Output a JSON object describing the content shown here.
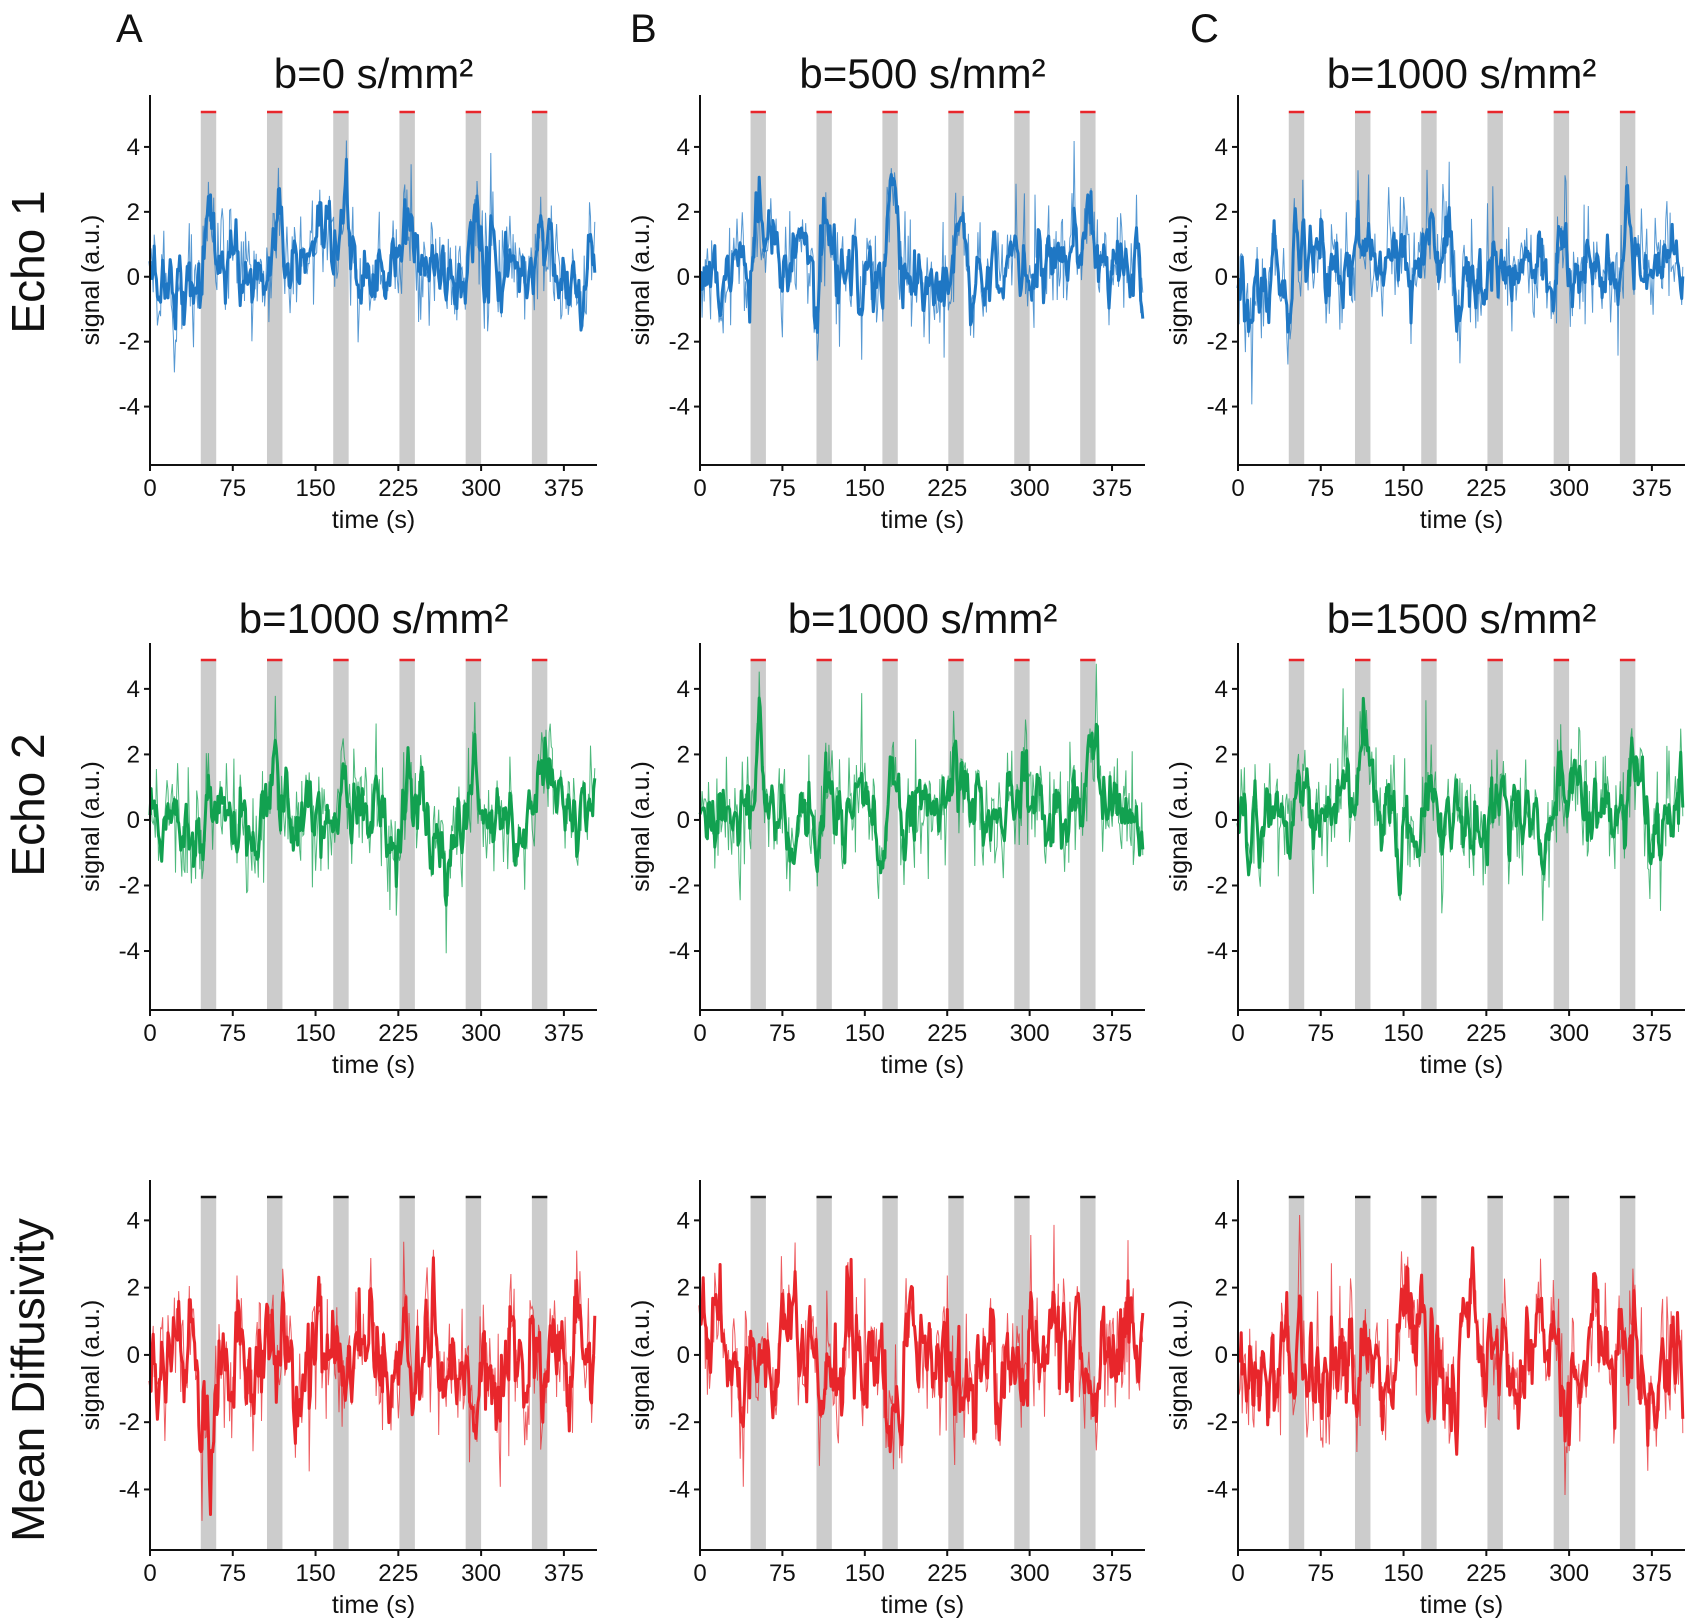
{
  "panel_letters": [
    "A",
    "B",
    "C"
  ],
  "row_labels": [
    "Echo 1",
    "Echo 2",
    "Mean Diffusivity"
  ],
  "colors": {
    "echo1": "#1f77c4",
    "echo2": "#12a150",
    "md": "#e8262b",
    "block": "#cccccc",
    "marker_red": "#e8262b",
    "marker_black": "#111111"
  },
  "chart_data": [
    {
      "type": "line",
      "title": "b=0 s/mm²",
      "row": "Echo 1",
      "column": "A",
      "xlabel": "time (s)",
      "ylabel": "signal (a.u.)",
      "xlim": [
        0,
        405
      ],
      "ylim": [
        -5.8,
        5.6
      ],
      "xticks": [
        0,
        75,
        150,
        225,
        300,
        375
      ],
      "yticks": [
        -4,
        -2,
        0,
        2,
        4
      ],
      "stimulus_blocks": [
        [
          46,
          60
        ],
        [
          106,
          120
        ],
        [
          166,
          180
        ],
        [
          226,
          240
        ],
        [
          286,
          300
        ],
        [
          346,
          360
        ]
      ],
      "response": "positive",
      "marker_color": "red"
    },
    {
      "type": "line",
      "title": "b=500 s/mm²",
      "row": "Echo 1",
      "column": "B",
      "xlabel": "time (s)",
      "ylabel": "signal (a.u.)",
      "xlim": [
        0,
        405
      ],
      "ylim": [
        -5.8,
        5.6
      ],
      "xticks": [
        0,
        75,
        150,
        225,
        300,
        375
      ],
      "yticks": [
        -4,
        -2,
        0,
        2,
        4
      ],
      "stimulus_blocks": [
        [
          46,
          60
        ],
        [
          106,
          120
        ],
        [
          166,
          180
        ],
        [
          226,
          240
        ],
        [
          286,
          300
        ],
        [
          346,
          360
        ]
      ],
      "response": "positive",
      "marker_color": "red"
    },
    {
      "type": "line",
      "title": "b=1000 s/mm²",
      "row": "Echo 1",
      "column": "C",
      "xlabel": "time (s)",
      "ylabel": "signal (a.u.)",
      "xlim": [
        0,
        405
      ],
      "ylim": [
        -5.8,
        5.6
      ],
      "xticks": [
        0,
        75,
        150,
        225,
        300,
        375
      ],
      "yticks": [
        -4,
        -2,
        0,
        2,
        4
      ],
      "stimulus_blocks": [
        [
          46,
          60
        ],
        [
          106,
          120
        ],
        [
          166,
          180
        ],
        [
          226,
          240
        ],
        [
          286,
          300
        ],
        [
          346,
          360
        ]
      ],
      "response": "positive",
      "marker_color": "red"
    },
    {
      "type": "line",
      "title": "b=1000 s/mm²",
      "row": "Echo 2",
      "column": "A",
      "xlabel": "time (s)",
      "ylabel": "signal (a.u.)",
      "xlim": [
        0,
        405
      ],
      "ylim": [
        -5.8,
        5.4
      ],
      "xticks": [
        0,
        75,
        150,
        225,
        300,
        375
      ],
      "yticks": [
        -4,
        -2,
        0,
        2,
        4
      ],
      "stimulus_blocks": [
        [
          46,
          60
        ],
        [
          106,
          120
        ],
        [
          166,
          180
        ],
        [
          226,
          240
        ],
        [
          286,
          300
        ],
        [
          346,
          360
        ]
      ],
      "response": "positive",
      "marker_color": "red"
    },
    {
      "type": "line",
      "title": "b=1000 s/mm²",
      "row": "Echo 2",
      "column": "B",
      "xlabel": "time (s)",
      "ylabel": "signal (a.u.)",
      "xlim": [
        0,
        405
      ],
      "ylim": [
        -5.8,
        5.4
      ],
      "xticks": [
        0,
        75,
        150,
        225,
        300,
        375
      ],
      "yticks": [
        -4,
        -2,
        0,
        2,
        4
      ],
      "stimulus_blocks": [
        [
          46,
          60
        ],
        [
          106,
          120
        ],
        [
          166,
          180
        ],
        [
          226,
          240
        ],
        [
          286,
          300
        ],
        [
          346,
          360
        ]
      ],
      "response": "positive",
      "marker_color": "red"
    },
    {
      "type": "line",
      "title": "b=1500 s/mm²",
      "row": "Echo 2",
      "column": "C",
      "xlabel": "time (s)",
      "ylabel": "signal (a.u.)",
      "xlim": [
        0,
        405
      ],
      "ylim": [
        -5.8,
        5.4
      ],
      "xticks": [
        0,
        75,
        150,
        225,
        300,
        375
      ],
      "yticks": [
        -4,
        -2,
        0,
        2,
        4
      ],
      "stimulus_blocks": [
        [
          46,
          60
        ],
        [
          106,
          120
        ],
        [
          166,
          180
        ],
        [
          226,
          240
        ],
        [
          286,
          300
        ],
        [
          346,
          360
        ]
      ],
      "response": "positive",
      "marker_color": "red"
    },
    {
      "type": "line",
      "title": "",
      "row": "Mean Diffusivity",
      "column": "A",
      "xlabel": "time (s)",
      "ylabel": "signal (a.u.)",
      "xlim": [
        0,
        405
      ],
      "ylim": [
        -5.8,
        5.2
      ],
      "xticks": [
        0,
        75,
        150,
        225,
        300,
        375
      ],
      "yticks": [
        -4,
        -2,
        0,
        2,
        4
      ],
      "stimulus_blocks": [
        [
          46,
          60
        ],
        [
          106,
          120
        ],
        [
          166,
          180
        ],
        [
          226,
          240
        ],
        [
          286,
          300
        ],
        [
          346,
          360
        ]
      ],
      "response": "negative",
      "marker_color": "black"
    },
    {
      "type": "line",
      "title": "",
      "row": "Mean Diffusivity",
      "column": "B",
      "xlabel": "time (s)",
      "ylabel": "signal (a.u.)",
      "xlim": [
        0,
        405
      ],
      "ylim": [
        -5.8,
        5.2
      ],
      "xticks": [
        0,
        75,
        150,
        225,
        300,
        375
      ],
      "yticks": [
        -4,
        -2,
        0,
        2,
        4
      ],
      "stimulus_blocks": [
        [
          46,
          60
        ],
        [
          106,
          120
        ],
        [
          166,
          180
        ],
        [
          226,
          240
        ],
        [
          286,
          300
        ],
        [
          346,
          360
        ]
      ],
      "response": "negative",
      "marker_color": "black"
    },
    {
      "type": "line",
      "title": "",
      "row": "Mean Diffusivity",
      "column": "C",
      "xlabel": "time (s)",
      "ylabel": "signal (a.u.)",
      "xlim": [
        0,
        405
      ],
      "ylim": [
        -5.8,
        5.2
      ],
      "xticks": [
        0,
        75,
        150,
        225,
        300,
        375
      ],
      "yticks": [
        -4,
        -2,
        0,
        2,
        4
      ],
      "stimulus_blocks": [
        [
          46,
          60
        ],
        [
          106,
          120
        ],
        [
          166,
          180
        ],
        [
          226,
          240
        ],
        [
          286,
          300
        ],
        [
          346,
          360
        ]
      ],
      "response": "negative",
      "marker_color": "black"
    }
  ]
}
